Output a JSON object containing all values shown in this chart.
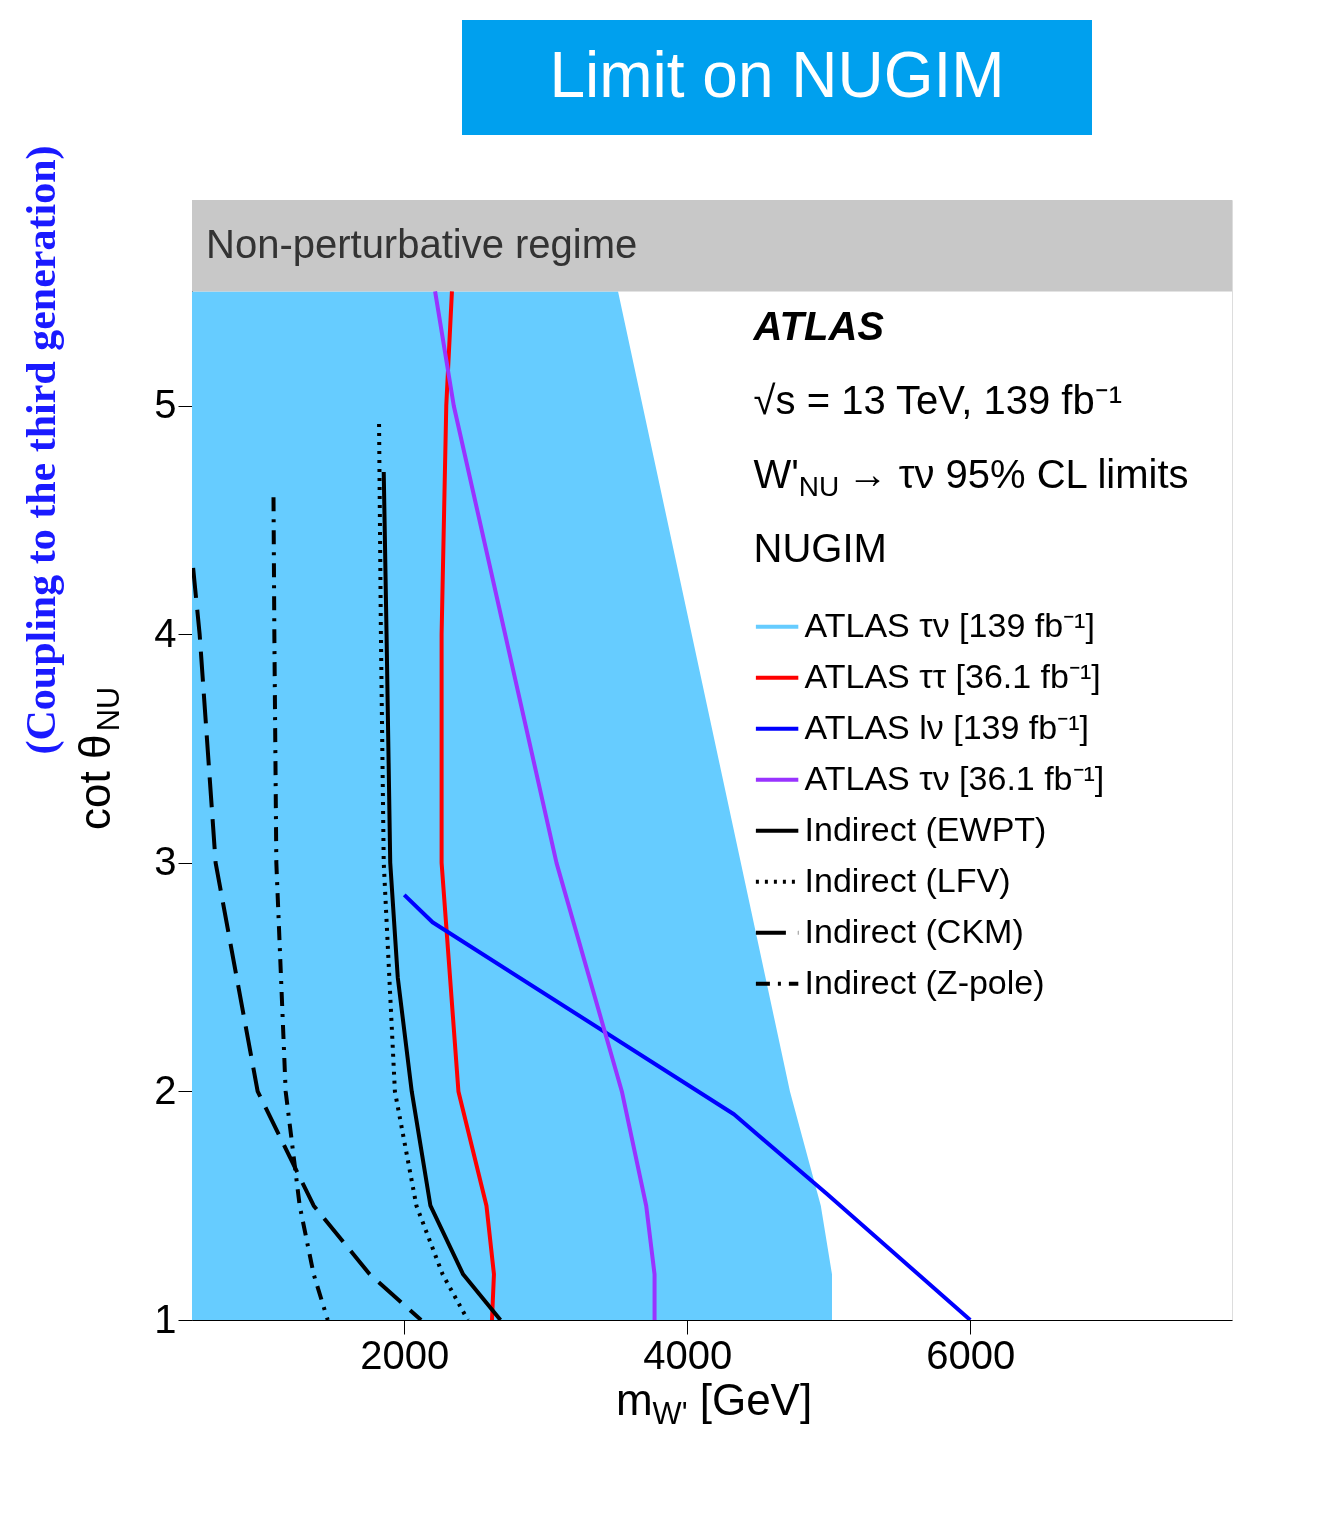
{
  "chart_data": {
    "type": "line",
    "title": "Limit on NUGIM",
    "xlabel": "m$_{W'}$ [GeV]",
    "ylabel": "cot θ$_{NU}$",
    "xlim": [
      500,
      7850
    ],
    "ylim": [
      1,
      5.9
    ],
    "xticks": [
      2000,
      4000,
      6000
    ],
    "yticks": [
      1,
      2,
      3,
      4,
      5
    ],
    "grid": false,
    "legend": "right",
    "bands": [
      {
        "axis": "y",
        "from": 5.5,
        "to": 5.9,
        "label": "Non-perturbative regime",
        "color": "#c8c8c8"
      }
    ],
    "annotations": [
      "ATLAS",
      "√s = 13 TeV, 139 fb⁻¹",
      "W'$_{NU}$ → τν 95% CL limits",
      "NUGIM",
      "(Coupling to the third generation)"
    ],
    "series": [
      {
        "name": "ATLAS τν [139 fb⁻¹]",
        "type": "area",
        "color": "#66ccff",
        "x": [
          500,
          3511,
          4726,
          4944,
          5023,
          5023
        ],
        "values": [
          5.5,
          5.5,
          2,
          1.5,
          1.2,
          1
        ]
      },
      {
        "name": "ATLAS ττ [36.1 fb⁻¹]",
        "color": "#ff0000",
        "line_style": "solid",
        "x": [
          2337,
          2297,
          2264,
          2264,
          2383,
          2581,
          2634,
          2620
        ],
        "values": [
          5.5,
          5,
          4,
          3,
          2,
          1.5,
          1.2,
          1
        ]
      },
      {
        "name": "ATLAS lν [139 fb⁻¹]",
        "color": "#0000ff",
        "line_style": "solid",
        "x": [
          2000,
          2200,
          4330,
          4990,
          6000
        ],
        "values": [
          2.86,
          2.74,
          1.9,
          1.55,
          1
        ]
      },
      {
        "name": "ATLAS τν [36.1 fb⁻¹]",
        "color": "#9933ff",
        "line_style": "solid",
        "x": [
          2218,
          2350,
          2713,
          3076,
          3538,
          3710,
          3769,
          3769
        ],
        "values": [
          5.5,
          5,
          4,
          3,
          2,
          1.5,
          1.2,
          1
        ]
      },
      {
        "name": "Indirect (EWPT)",
        "color": "#000000",
        "line_style": "solid",
        "x": [
          1855,
          1875,
          1901,
          1954,
          2053,
          2185,
          2416,
          2680
        ],
        "values": [
          4.71,
          4,
          3,
          2.5,
          2,
          1.5,
          1.2,
          1
        ]
      },
      {
        "name": "Indirect (LFV)",
        "color": "#000000",
        "line_style": "dotted",
        "x": [
          1822,
          1835,
          1855,
          1934,
          2086,
          2271,
          2449
        ],
        "values": [
          4.92,
          4,
          3,
          2,
          1.5,
          1.2,
          1
        ]
      },
      {
        "name": "Indirect (CKM)",
        "color": "#000000",
        "line_style": "dashed",
        "x": [
          508,
          554,
          667,
          964,
          1360,
          1756,
          2119
        ],
        "values": [
          4.29,
          4,
          3,
          2,
          1.5,
          1.2,
          1
        ]
      },
      {
        "name": "Indirect (Z-pole)",
        "color": "#000000",
        "line_style": "dashdot",
        "x": [
          1076,
          1082,
          1096,
          1162,
          1261,
          1360,
          1459
        ],
        "values": [
          4.6,
          4,
          3,
          2,
          1.5,
          1.2,
          1
        ]
      }
    ]
  }
}
